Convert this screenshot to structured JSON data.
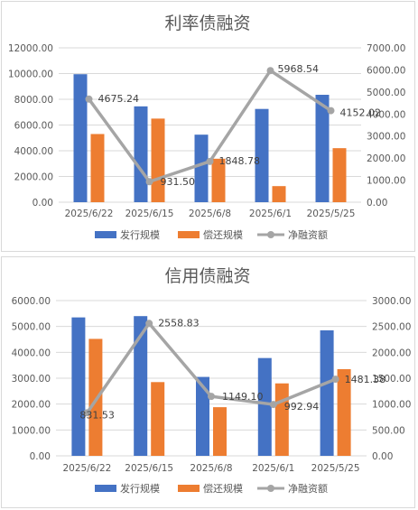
{
  "colors": {
    "issuance": "#4472c4",
    "repayment": "#ed7d31",
    "net": "#a5a5a5",
    "grid": "#d9d9d9",
    "text": "#595959"
  },
  "chart_data": [
    {
      "type": "bar",
      "title": "利率债融资",
      "categories": [
        "2025/6/22",
        "2025/6/15",
        "2025/6/8",
        "2025/6/1",
        "2025/5/25"
      ],
      "series": [
        {
          "name": "发行规模",
          "type": "bar",
          "axis": "left",
          "values": [
            9950,
            7450,
            5250,
            7250,
            8350
          ]
        },
        {
          "name": "偿还规模",
          "type": "bar",
          "axis": "left",
          "values": [
            5300,
            6500,
            3380,
            1250,
            4200
          ]
        },
        {
          "name": "净融资额",
          "type": "line",
          "axis": "right",
          "values": [
            4675.24,
            931.5,
            1848.78,
            5968.54,
            4152.02
          ],
          "labels": [
            "4675.24",
            "931.50",
            "1848.78",
            "5968.54",
            "4152.02"
          ]
        }
      ],
      "yticks_left": [
        "0.00",
        "2000.00",
        "4000.00",
        "6000.00",
        "8000.00",
        "10000.00",
        "12000.00"
      ],
      "yticks_right": [
        "0.00",
        "1000.00",
        "2000.00",
        "3000.00",
        "4000.00",
        "5000.00",
        "6000.00",
        "7000.00"
      ],
      "ylim_left": [
        0,
        12000
      ],
      "ylim_right": [
        0,
        7000
      ],
      "legend": "bottom",
      "grid": true
    },
    {
      "type": "bar",
      "title": "信用债融资",
      "categories": [
        "2025/6/22",
        "2025/6/15",
        "2025/6/8",
        "2025/6/1",
        "2025/5/25"
      ],
      "series": [
        {
          "name": "发行规模",
          "type": "bar",
          "axis": "left",
          "values": [
            5350,
            5400,
            3050,
            3780,
            4850
          ]
        },
        {
          "name": "偿还规模",
          "type": "bar",
          "axis": "left",
          "values": [
            4520,
            2850,
            1880,
            2800,
            3350
          ]
        },
        {
          "name": "净融资额",
          "type": "line",
          "axis": "right",
          "values": [
            831.53,
            2558.83,
            1149.1,
            992.94,
            1481.38
          ],
          "labels": [
            "831.53",
            "2558.83",
            "1149.10",
            "992.94",
            "1481.38"
          ]
        }
      ],
      "yticks_left": [
        "0.00",
        "1000.00",
        "2000.00",
        "3000.00",
        "4000.00",
        "5000.00",
        "6000.00"
      ],
      "yticks_right": [
        "0.00",
        "500.00",
        "1000.00",
        "1500.00",
        "2000.00",
        "2500.00",
        "3000.00"
      ],
      "ylim_left": [
        0,
        6000
      ],
      "ylim_right": [
        0,
        3000
      ],
      "legend": "bottom",
      "grid": true
    }
  ]
}
